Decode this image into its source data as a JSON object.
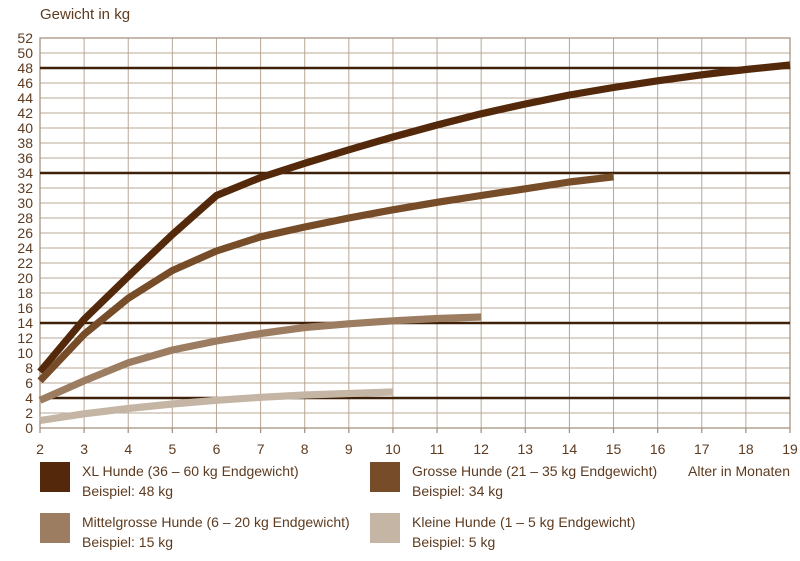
{
  "title": "Gewicht in kg",
  "colors": {
    "grid": "#b9a795",
    "plot_border": "#a89382",
    "reference_line": "#3f2109",
    "text": "#5d3b20",
    "background": "#ffffff"
  },
  "chart_data": {
    "type": "line",
    "title": "Gewicht in kg",
    "xlabel": "Alter in Monaten",
    "ylabel": "Gewicht in kg",
    "xlim": [
      2,
      19
    ],
    "ylim": [
      0,
      52
    ],
    "x_ticks": [
      2,
      3,
      4,
      5,
      6,
      7,
      8,
      9,
      10,
      11,
      12,
      13,
      14,
      15,
      16,
      17,
      18,
      19
    ],
    "y_ticks": [
      0,
      2,
      4,
      6,
      8,
      10,
      12,
      14,
      16,
      18,
      20,
      22,
      24,
      26,
      28,
      30,
      32,
      34,
      36,
      38,
      40,
      42,
      44,
      46,
      48,
      50,
      52
    ],
    "grid": true,
    "legend_position": "bottom",
    "reference_lines": [
      48,
      34,
      14,
      4
    ],
    "series": [
      {
        "name": "XL Hunde (36 – 60 kg Endgewicht)",
        "example": "Beispiel: 48 kg",
        "color": "#54290b",
        "x": [
          2,
          3,
          4,
          5,
          6,
          7,
          8,
          9,
          10,
          11,
          12,
          13,
          14,
          15,
          16,
          17,
          18,
          19
        ],
        "values": [
          7.5,
          14.5,
          20.2,
          25.8,
          31,
          33.4,
          35.3,
          37.1,
          38.8,
          40.4,
          41.9,
          43.2,
          44.4,
          45.4,
          46.3,
          47.1,
          47.8,
          48.4
        ]
      },
      {
        "name": "Grosse Hunde (21 – 35 kg Endgewicht)",
        "example": "Beispiel: 34 kg",
        "color": "#774c28",
        "x": [
          2,
          3,
          4,
          5,
          6,
          7,
          8,
          9,
          10,
          11,
          12,
          13,
          14,
          15
        ],
        "values": [
          6.3,
          12.5,
          17.3,
          21,
          23.6,
          25.5,
          26.8,
          28,
          29.1,
          30.1,
          31,
          31.9,
          32.8,
          33.5
        ]
      },
      {
        "name": "Mittelgrosse Hunde (6 – 20 kg Endgewicht)",
        "example": "Beispiel: 15 kg",
        "color": "#9c7d62",
        "x": [
          2,
          3,
          4,
          5,
          6,
          7,
          8,
          9,
          10,
          11,
          12
        ],
        "values": [
          3.7,
          6.3,
          8.7,
          10.4,
          11.6,
          12.6,
          13.4,
          13.9,
          14.3,
          14.6,
          14.8
        ]
      },
      {
        "name": "Kleine Hunde (1 – 5 kg Endgewicht)",
        "example": "Beispiel: 5 kg",
        "color": "#c5b5a5",
        "x": [
          2,
          3,
          4,
          5,
          6,
          7,
          8,
          9,
          10
        ],
        "values": [
          1,
          1.9,
          2.6,
          3.2,
          3.7,
          4.1,
          4.4,
          4.6,
          4.8
        ]
      }
    ]
  }
}
